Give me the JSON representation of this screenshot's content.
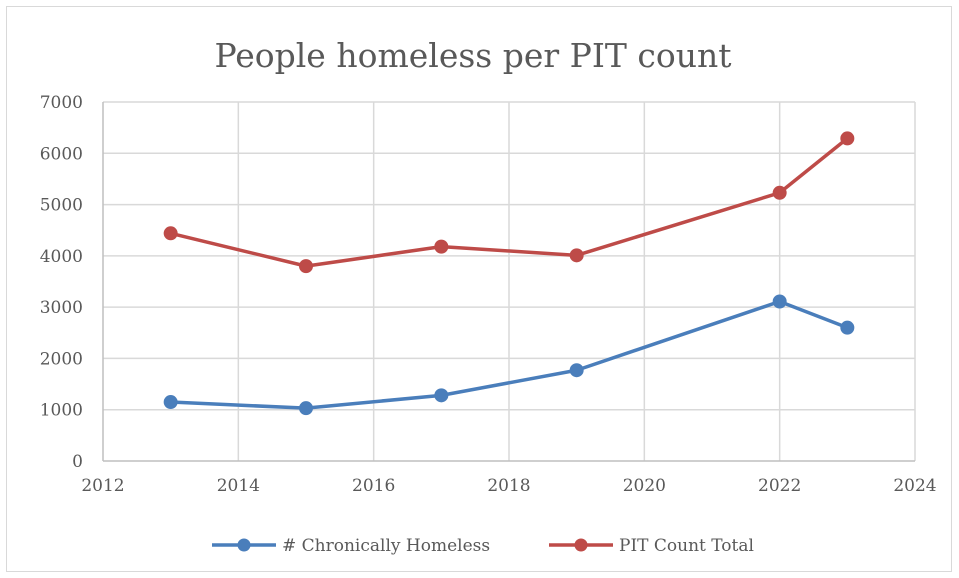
{
  "chart_data": {
    "type": "scatter",
    "title": "People homeless per PIT count",
    "xlabel": "",
    "ylabel": "",
    "xlim": [
      2012,
      2024
    ],
    "ylim": [
      0,
      7000
    ],
    "x_ticks": [
      2012,
      2014,
      2016,
      2018,
      2020,
      2022,
      2024
    ],
    "y_ticks": [
      0,
      1000,
      2000,
      3000,
      4000,
      5000,
      6000,
      7000
    ],
    "grid": true,
    "legend_position": "bottom",
    "series": [
      {
        "name": "# Chronically Homeless",
        "color": "#4a7ebb",
        "x": [
          2013,
          2015,
          2017,
          2019,
          2022,
          2023
        ],
        "y": [
          1150,
          1030,
          1280,
          1770,
          3110,
          2600
        ]
      },
      {
        "name": "PIT Count Total",
        "color": "#be4b48",
        "x": [
          2013,
          2015,
          2017,
          2019,
          2022,
          2023
        ],
        "y": [
          4440,
          3800,
          4180,
          4010,
          5230,
          6290
        ]
      }
    ]
  }
}
